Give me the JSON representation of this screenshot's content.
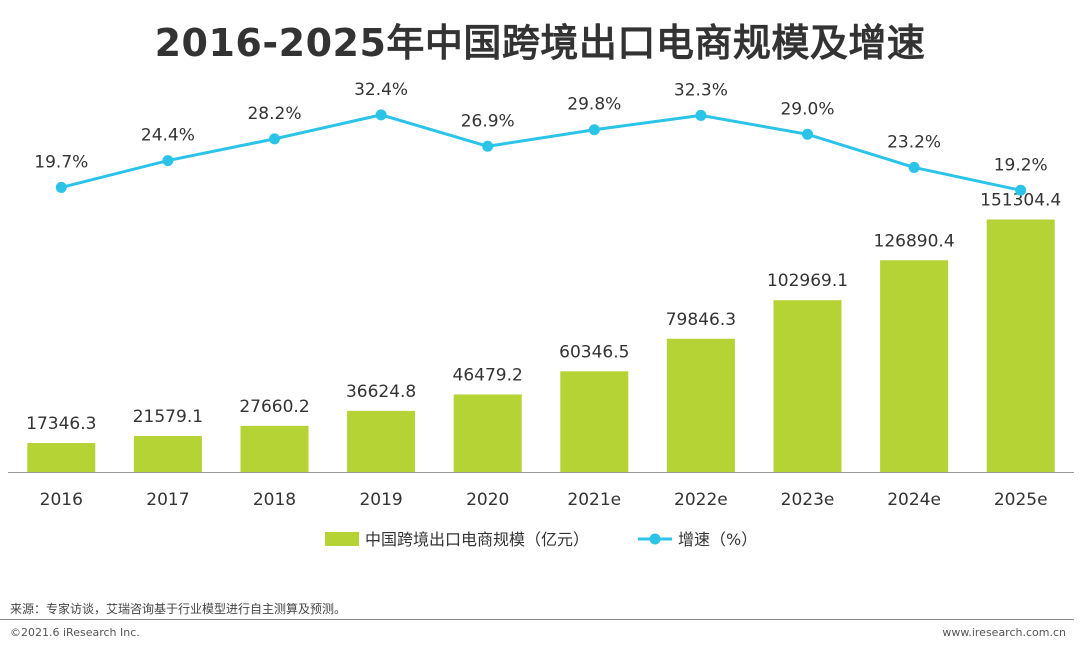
{
  "chart_data": {
    "type": "bar",
    "title": "2016-2025年中国跨境出口电商规模及增速",
    "categories": [
      "2016",
      "2017",
      "2018",
      "2019",
      "2020",
      "2021e",
      "2022e",
      "2023e",
      "2024e",
      "2025e"
    ],
    "series": [
      {
        "name": "中国跨境出口电商规模（亿元）",
        "kind": "bar",
        "color": "#b5d334",
        "values": [
          17346.3,
          21579.1,
          27660.2,
          36624.8,
          46479.2,
          60346.5,
          79846.3,
          102969.1,
          126890.4,
          151304.4
        ],
        "labels": [
          "17346.3",
          "21579.1",
          "27660.2",
          "36624.8",
          "46479.2",
          "60346.5",
          "79846.3",
          "102969.1",
          "126890.4",
          "151304.4"
        ]
      },
      {
        "name": "增速（%）",
        "kind": "line",
        "color": "#2cc3e8",
        "values": [
          19.7,
          24.4,
          28.2,
          32.4,
          26.9,
          29.8,
          32.3,
          29.0,
          23.2,
          19.2
        ],
        "labels": [
          "19.7%",
          "24.4%",
          "28.2%",
          "32.4%",
          "26.9%",
          "29.8%",
          "32.3%",
          "29.0%",
          "23.2%",
          "19.2%"
        ]
      }
    ],
    "bar_ylim": [
      0,
      160000
    ],
    "line_ylim": [
      0,
      35
    ],
    "grid": false,
    "legend_position": "bottom-center"
  },
  "footer": {
    "source": "来源：专家访谈，艾瑞咨询基于行业模型进行自主测算及预测。",
    "copyright": "©2021.6 iResearch Inc.",
    "website": "www.iresearch.com.cn"
  }
}
